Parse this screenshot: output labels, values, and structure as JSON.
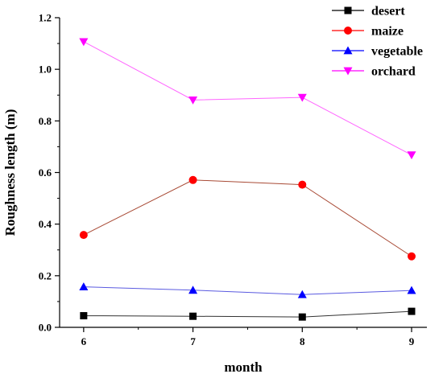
{
  "chart_data": {
    "type": "line",
    "title": "",
    "xlabel": "month",
    "ylabel": "Roughness length (m)",
    "x": [
      6,
      7,
      8,
      9
    ],
    "x_tick_labels": [
      "6",
      "7",
      "8",
      "9"
    ],
    "xlim": [
      5.78,
      9.14
    ],
    "ylim": [
      0,
      1.2
    ],
    "y_ticks": [
      0.0,
      0.2,
      0.4,
      0.6,
      0.8,
      1.0,
      1.2
    ],
    "y_tick_labels": [
      "0.0",
      "0.2",
      "0.4",
      "0.6",
      "0.8",
      "1.0",
      "1.2"
    ],
    "grid": false,
    "legend_position": "top-right",
    "series": [
      {
        "name": "desert",
        "marker": "square",
        "color": "#000000",
        "line_color": "#333333",
        "values": [
          0.045,
          0.043,
          0.04,
          0.062
        ]
      },
      {
        "name": "maize",
        "marker": "circle",
        "color": "#ff0000",
        "line_color": "#a84a35",
        "values": [
          0.358,
          0.571,
          0.553,
          0.275
        ]
      },
      {
        "name": "vegetable",
        "marker": "triangle-up",
        "color": "#0000ff",
        "line_color": "#5a5ae0",
        "values": [
          0.157,
          0.144,
          0.127,
          0.143
        ]
      },
      {
        "name": "orchard",
        "marker": "triangle-down",
        "color": "#ff00ff",
        "line_color": "#ff66ff",
        "values": [
          1.107,
          0.881,
          0.891,
          0.668
        ]
      }
    ]
  }
}
